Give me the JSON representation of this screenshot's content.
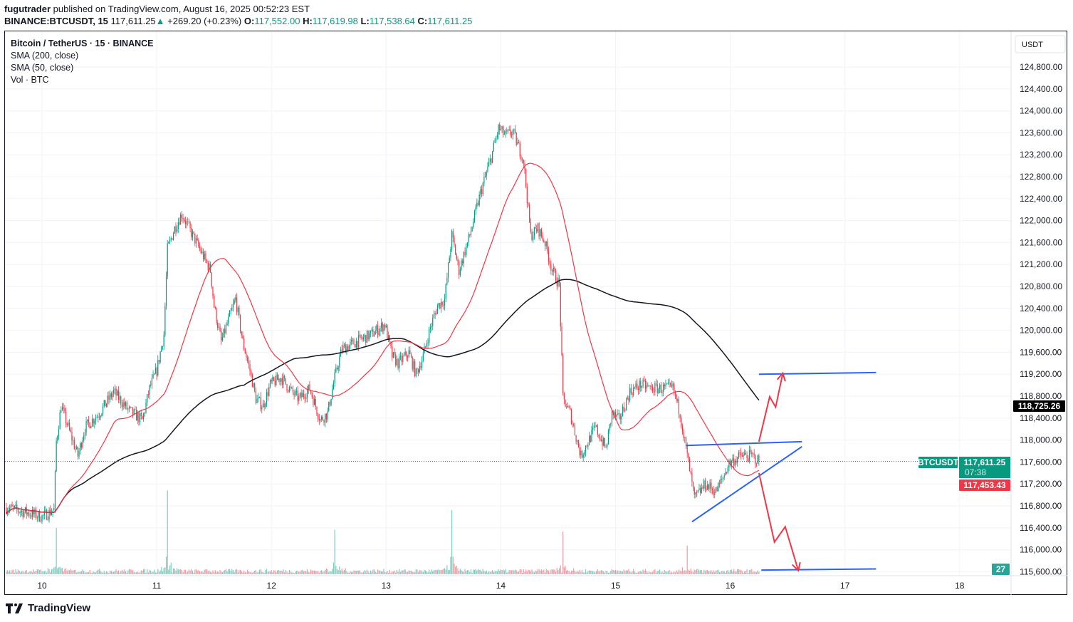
{
  "header": {
    "author": "fugutrader",
    "published": "published on TradingView.com, August 16, 2025 00:52:23 EST",
    "symbol": "BINANCE:BTCUSDT, 15",
    "last": "117,611.25",
    "change": "+269.20 (+0.23%)",
    "o_label": "O:",
    "o": "117,552.00",
    "h_label": "H:",
    "h": "117,619.98",
    "l_label": "L:",
    "l": "117,538.64",
    "c_label": "C:",
    "c": "117,611.25"
  },
  "legend": {
    "title": "Bitcoin / TetherUS · 15 · BINANCE",
    "sma200": "SMA (200, close)",
    "sma50": "SMA (50, close)",
    "vol": "Vol · BTC"
  },
  "brand": "TradingView",
  "colors": {
    "up": "#089981",
    "down": "#f23645",
    "sma200": "#131722",
    "sma50": "#f23645",
    "drawing_line": "#2962ff",
    "drawing_arrow": "#f23645",
    "grid": "#f0f3fa"
  },
  "chart_data": {
    "type": "candlestick",
    "interval": "15",
    "currency_label": "USDT",
    "ylim": [
      115450,
      125150
    ],
    "price_ticks": [
      115600,
      116000,
      116400,
      116800,
      117200,
      117600,
      118000,
      118400,
      118800,
      119200,
      119600,
      120000,
      120400,
      120800,
      121200,
      121600,
      122000,
      122400,
      122800,
      123200,
      123600,
      124000,
      124400,
      124800
    ],
    "time_ticks": [
      {
        "t": "2025-08-10T00:00",
        "label": "10"
      },
      {
        "t": "2025-08-11T00:00",
        "label": "11"
      },
      {
        "t": "2025-08-12T00:00",
        "label": "12"
      },
      {
        "t": "2025-08-13T00:00",
        "label": "13"
      },
      {
        "t": "2025-08-14T00:00",
        "label": "14"
      },
      {
        "t": "2025-08-15T00:00",
        "label": "15"
      },
      {
        "t": "2025-08-16T00:00",
        "label": "16"
      },
      {
        "t": "2025-08-17T00:00",
        "label": "17"
      },
      {
        "t": "2025-08-18T00:00",
        "label": "18"
      }
    ],
    "price_path": [
      [
        "2025-08-09T16:30",
        116770
      ],
      [
        "2025-08-09T21:15",
        116670
      ],
      [
        "2025-08-10T00:00",
        116600
      ],
      [
        "2025-08-10T02:30",
        116730
      ],
      [
        "2025-08-10T03:00",
        117970
      ],
      [
        "2025-08-10T04:00",
        118620
      ],
      [
        "2025-08-10T06:00",
        118100
      ],
      [
        "2025-08-10T07:30",
        117710
      ],
      [
        "2025-08-10T09:00",
        118230
      ],
      [
        "2025-08-10T12:00",
        118490
      ],
      [
        "2025-08-10T15:00",
        118880
      ],
      [
        "2025-08-10T18:00",
        118550
      ],
      [
        "2025-08-10T21:00",
        118360
      ],
      [
        "2025-08-10T22:30",
        118940
      ],
      [
        "2025-08-11T00:00",
        119270
      ],
      [
        "2025-08-11T01:30",
        119920
      ],
      [
        "2025-08-11T02:15",
        121480
      ],
      [
        "2025-08-11T03:45",
        121860
      ],
      [
        "2025-08-11T05:15",
        122120
      ],
      [
        "2025-08-11T06:45",
        121860
      ],
      [
        "2025-08-11T09:00",
        121480
      ],
      [
        "2025-08-11T11:15",
        121090
      ],
      [
        "2025-08-11T12:00",
        120440
      ],
      [
        "2025-08-11T13:30",
        119790
      ],
      [
        "2025-08-11T15:00",
        120180
      ],
      [
        "2025-08-11T16:30",
        120570
      ],
      [
        "2025-08-11T18:00",
        119790
      ],
      [
        "2025-08-11T19:30",
        119270
      ],
      [
        "2025-08-11T20:45",
        118750
      ],
      [
        "2025-08-11T22:15",
        118620
      ],
      [
        "2025-08-11T23:45",
        119010
      ],
      [
        "2025-08-12T02:00",
        119140
      ],
      [
        "2025-08-12T04:15",
        118880
      ],
      [
        "2025-08-12T05:45",
        118750
      ],
      [
        "2025-08-12T08:00",
        118940
      ],
      [
        "2025-08-12T10:15",
        118360
      ],
      [
        "2025-08-12T11:45",
        118490
      ],
      [
        "2025-08-12T13:15",
        119140
      ],
      [
        "2025-08-12T14:45",
        119660
      ],
      [
        "2025-08-12T17:45",
        119790
      ],
      [
        "2025-08-12T20:45",
        119920
      ],
      [
        "2025-08-12T23:45",
        120110
      ],
      [
        "2025-08-13T01:15",
        119530
      ],
      [
        "2025-08-13T02:30",
        119400
      ],
      [
        "2025-08-13T04:45",
        119590
      ],
      [
        "2025-08-13T06:15",
        119200
      ],
      [
        "2025-08-13T07:45",
        119530
      ],
      [
        "2025-08-13T09:15",
        120050
      ],
      [
        "2025-08-13T10:45",
        120440
      ],
      [
        "2025-08-13T12:15",
        120570
      ],
      [
        "2025-08-13T13:45",
        121730
      ],
      [
        "2025-08-13T15:15",
        121090
      ],
      [
        "2025-08-13T17:30",
        121730
      ],
      [
        "2025-08-13T19:45",
        122510
      ],
      [
        "2025-08-13T22:00",
        123160
      ],
      [
        "2025-08-13T23:30",
        123680
      ],
      [
        "2025-08-14T01:00",
        123550
      ],
      [
        "2025-08-14T02:30",
        123620
      ],
      [
        "2025-08-14T04:45",
        123100
      ],
      [
        "2025-08-14T06:15",
        121730
      ],
      [
        "2025-08-14T07:45",
        121860
      ],
      [
        "2025-08-14T09:15",
        121600
      ],
      [
        "2025-08-14T10:45",
        121090
      ],
      [
        "2025-08-14T12:15",
        120830
      ],
      [
        "2025-08-14T13:00",
        118750
      ],
      [
        "2025-08-14T14:30",
        118490
      ],
      [
        "2025-08-14T16:45",
        117710
      ],
      [
        "2025-08-14T18:15",
        117970
      ],
      [
        "2025-08-14T19:45",
        118230
      ],
      [
        "2025-08-14T22:00",
        117840
      ],
      [
        "2025-08-14T23:15",
        118490
      ],
      [
        "2025-08-15T00:45",
        118360
      ],
      [
        "2025-08-15T03:00",
        118880
      ],
      [
        "2025-08-15T05:15",
        119010
      ],
      [
        "2025-08-15T07:30",
        118940
      ],
      [
        "2025-08-15T09:45",
        118940
      ],
      [
        "2025-08-15T12:00",
        118940
      ],
      [
        "2025-08-15T13:30",
        118490
      ],
      [
        "2025-08-15T15:00",
        117710
      ],
      [
        "2025-08-15T16:30",
        116930
      ],
      [
        "2025-08-15T18:45",
        117190
      ],
      [
        "2025-08-15T21:00",
        117060
      ],
      [
        "2025-08-15T22:30",
        117320
      ],
      [
        "2025-08-15T23:45",
        117580
      ],
      [
        "2025-08-16T02:15",
        117710
      ],
      [
        "2025-08-16T04:30",
        117710
      ],
      [
        "2025-08-16T06:00",
        117611.25
      ]
    ],
    "volume_max": 2400,
    "volume_spikes": [
      [
        "2025-08-10T03:00",
        1300
      ],
      [
        "2025-08-11T02:15",
        2350
      ],
      [
        "2025-08-12T13:15",
        1250
      ],
      [
        "2025-08-13T13:45",
        1800
      ],
      [
        "2025-08-14T13:00",
        1200
      ],
      [
        "2025-08-15T15:00",
        800
      ]
    ],
    "last_volume": "27",
    "labels": {
      "symbol_tag": "BTCUSDT",
      "last_price": "117,611.25",
      "countdown": "07:38",
      "sma200_value": "118,725.26",
      "sma50_value": "117,453.43"
    },
    "drawings": {
      "lines": [
        [
          [
            "2025-08-15T14:45",
            117900
          ],
          [
            "2025-08-16T15:00",
            117970
          ]
        ],
        [
          [
            "2025-08-15T16:00",
            116510
          ],
          [
            "2025-08-16T15:00",
            117880
          ]
        ],
        [
          [
            "2025-08-16T06:00",
            119200
          ],
          [
            "2025-08-17T06:30",
            119230
          ]
        ],
        [
          [
            "2025-08-16T06:30",
            115630
          ],
          [
            "2025-08-17T06:30",
            115650
          ]
        ]
      ],
      "arrows": [
        [
          [
            "2025-08-16T06:00",
            117970
          ],
          [
            "2025-08-16T08:15",
            118790
          ],
          [
            "2025-08-16T09:30",
            118600
          ],
          [
            "2025-08-16T11:00",
            119220
          ]
        ],
        [
          [
            "2025-08-16T06:00",
            117400
          ],
          [
            "2025-08-16T09:15",
            116140
          ],
          [
            "2025-08-16T11:30",
            116420
          ],
          [
            "2025-08-16T14:15",
            115620
          ]
        ]
      ]
    }
  }
}
